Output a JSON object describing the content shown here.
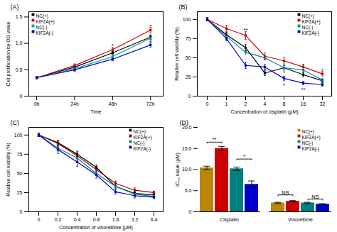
{
  "chart_data": [
    {
      "type": "line",
      "title": "(A)",
      "xlabel": "Time",
      "ylabel": "Cell proliferation by OD value",
      "x": [
        0,
        24,
        48,
        72
      ],
      "xlim": [
        -5,
        80
      ],
      "xticks": [
        {
          "value": 0,
          "label": "0h"
        },
        {
          "value": 24,
          "label": "24h"
        },
        {
          "value": 48,
          "label": "48h"
        },
        {
          "value": 72,
          "label": "72h"
        }
      ],
      "ylim": [
        0,
        1.6
      ],
      "yticks": [
        0,
        0.5,
        {
          "value": 1.0,
          "label": "1.0"
        },
        1.5
      ],
      "marker": "square",
      "legend": "top-left",
      "series": [
        {
          "name": "NC(+)",
          "color": "#000000",
          "values": [
            0.35,
            0.55,
            0.82,
            1.12
          ],
          "err": [
            0.02,
            0.03,
            0.03,
            0.04
          ]
        },
        {
          "name": "KIF2A(+)",
          "color": "#cc0000",
          "values": [
            0.35,
            0.58,
            0.88,
            1.25
          ],
          "err": [
            0.02,
            0.03,
            0.04,
            0.05
          ]
        },
        {
          "name": "NC(-)",
          "color": "#00a0a0",
          "values": [
            0.35,
            0.52,
            0.75,
            1.1
          ],
          "err": [
            0.02,
            0.03,
            0.03,
            0.04
          ]
        },
        {
          "name": "KIF2A(-)",
          "color": "#0000cc",
          "values": [
            0.35,
            0.5,
            0.7,
            0.97
          ],
          "err": [
            0.02,
            0.03,
            0.03,
            0.04
          ]
        }
      ],
      "annotations": [
        {
          "x": 48,
          "y": 0.92,
          "text": "*"
        },
        {
          "x": 72,
          "y": 1.29,
          "text": "*"
        },
        {
          "x": 72,
          "y": 0.99,
          "text": "*"
        }
      ]
    },
    {
      "type": "line",
      "title": "(B)",
      "xlabel": "Concentration of cisplatin (μM)",
      "ylabel": "Relative cell viability (%)",
      "categories": [
        "0",
        "1",
        "2",
        "4",
        "8",
        "16",
        "32"
      ],
      "ylim": [
        0,
        110
      ],
      "yticks": [
        0,
        25,
        50,
        75,
        100
      ],
      "marker": "square",
      "legend": "top-right",
      "series": [
        {
          "name": "NC(+)",
          "color": "#000000",
          "values": [
            100,
            80,
            63,
            30,
            37,
            28,
            20
          ],
          "err": [
            2,
            3,
            4,
            3,
            3,
            3,
            2
          ]
        },
        {
          "name": "KIF2A(+)",
          "color": "#cc0000",
          "values": [
            100,
            88,
            79,
            52,
            46,
            38,
            29
          ],
          "err": [
            2,
            4,
            5,
            4,
            4,
            3,
            3
          ]
        },
        {
          "name": "NC(-)",
          "color": "#008888",
          "values": [
            100,
            78,
            57,
            50,
            37,
            34,
            21
          ],
          "err": [
            2,
            3,
            3,
            3,
            3,
            3,
            2
          ]
        },
        {
          "name": "KIF2A(-)",
          "color": "#0000cc",
          "values": [
            100,
            75,
            40,
            38,
            23,
            17,
            15
          ],
          "err": [
            2,
            3,
            4,
            3,
            3,
            2,
            2
          ]
        }
      ],
      "annotations": [
        {
          "x": "2",
          "y": 84,
          "text": "**"
        },
        {
          "x": "4",
          "y": 32,
          "text": "*"
        },
        {
          "x": "8",
          "y": 28,
          "text": "*"
        },
        {
          "x": "8",
          "y": 12,
          "text": "*"
        },
        {
          "x": "16",
          "y": 37,
          "text": "*"
        },
        {
          "x": "16",
          "y": 6,
          "text": "**"
        },
        {
          "x": "32",
          "y": 31,
          "text": "*"
        }
      ]
    },
    {
      "type": "line",
      "title": "(C)",
      "xlabel": "Concentration of vinorelbine (μM)",
      "ylabel": "Relative cell viability (%)",
      "categories": [
        "0",
        "0.2",
        "0.4",
        "0.8",
        "1.6",
        "3.2",
        "6.4"
      ],
      "ylim": [
        0,
        110
      ],
      "yticks": [
        0,
        25,
        50,
        75,
        100
      ],
      "marker": "square",
      "legend": "top-right",
      "series": [
        {
          "name": "NC(+)",
          "color": "#000000",
          "values": [
            100,
            90,
            75,
            58,
            33,
            24,
            22
          ],
          "err": [
            2,
            3,
            4,
            3,
            3,
            3,
            2
          ]
        },
        {
          "name": "KIF2A(+)",
          "color": "#990000",
          "values": [
            100,
            89,
            73,
            55,
            37,
            28,
            25
          ],
          "err": [
            2,
            4,
            4,
            4,
            3,
            3,
            2
          ]
        },
        {
          "name": "NC(-)",
          "color": "#008888",
          "values": [
            100,
            83,
            70,
            50,
            33,
            23,
            20
          ],
          "err": [
            2,
            4,
            5,
            3,
            3,
            3,
            2
          ]
        },
        {
          "name": "KIF2A(-)",
          "color": "#0000cc",
          "values": [
            100,
            81,
            65,
            48,
            26,
            21,
            19
          ],
          "err": [
            2,
            5,
            6,
            4,
            3,
            3,
            2
          ]
        }
      ]
    },
    {
      "type": "bar",
      "title": "(D)",
      "ylabel": "IC₅₀ value (μM)",
      "categories": [
        "Cisplatin",
        "Vinorelbine"
      ],
      "ylim": [
        0,
        20
      ],
      "yticks": [
        0,
        {
          "value": 5.0,
          "label": "5.0"
        },
        {
          "value": 10.0,
          "label": "10.0"
        },
        {
          "value": 15.0,
          "label": "15.0"
        },
        {
          "value": 20.0,
          "label": "20.0"
        }
      ],
      "legend": "top-right",
      "series": [
        {
          "name": "NC(+)",
          "color": "#b8860b",
          "values": [
            10.4,
            2.1
          ],
          "err": [
            0.4,
            0.15
          ]
        },
        {
          "name": "KIF2A(+)",
          "color": "#cc0000",
          "values": [
            15.0,
            2.5
          ],
          "err": [
            0.5,
            0.15
          ]
        },
        {
          "name": "NC(-)",
          "color": "#008080",
          "values": [
            10.2,
            2.1
          ],
          "err": [
            0.4,
            0.15
          ]
        },
        {
          "name": "KIF2A(-)",
          "color": "#0000cc",
          "values": [
            6.5,
            1.8
          ],
          "err": [
            0.8,
            0.12
          ]
        }
      ],
      "annotations": [
        {
          "category": "Cisplatin",
          "x1": "NC(+)",
          "x2": "KIF2A(+)",
          "y": 16.5,
          "text": "**"
        },
        {
          "category": "Cisplatin",
          "x1": "NC(-)",
          "x2": "KIF2A(-)",
          "y": 12.5,
          "text": "*"
        },
        {
          "category": "Vinorelbine",
          "x1": "NC(+)",
          "x2": "KIF2A(+)",
          "y": 4.0,
          "text": "NS"
        },
        {
          "category": "Vinorelbine",
          "x1": "NC(-)",
          "x2": "KIF2A(-)",
          "y": 3.0,
          "text": "NS"
        }
      ]
    }
  ]
}
